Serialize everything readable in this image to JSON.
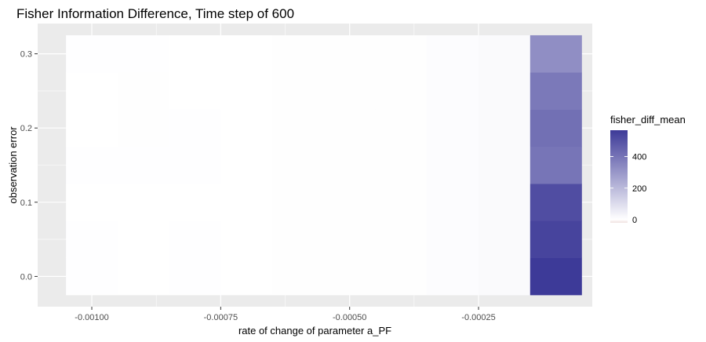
{
  "chart_data": {
    "type": "heatmap",
    "title": "Fisher Information Difference, Time step of 600",
    "xlabel": "rate of change of parameter a_PF",
    "ylabel": "observation error",
    "x_ticks": [
      -0.001,
      -0.00075,
      -0.0005,
      -0.00025
    ],
    "x_tick_labels": [
      "-0.00100",
      "-0.00075",
      "-0.00050",
      "-0.00025"
    ],
    "y_ticks": [
      0.0,
      0.1,
      0.2,
      0.3
    ],
    "y_tick_labels": [
      "0.0",
      "0.1",
      "0.2",
      "0.3"
    ],
    "xlim": [
      -0.001105,
      -2.95e-05
    ],
    "ylim": [
      -0.0408,
      0.3408
    ],
    "x_centers": [
      -0.001,
      -0.0009,
      -0.0008,
      -0.0007,
      -0.0006,
      -0.0005,
      -0.0004,
      -0.0003,
      -0.0002,
      -0.0001
    ],
    "y_centers": [
      0.0,
      0.05,
      0.1,
      0.15,
      0.2,
      0.25,
      0.3
    ],
    "tile_width": 0.0001,
    "tile_height": 0.05,
    "z": [
      [
        2,
        1,
        2,
        1,
        3,
        3,
        4,
        8,
        14,
        567
      ],
      [
        2,
        1,
        2,
        1,
        3,
        3,
        4,
        8,
        14,
        538
      ],
      [
        1,
        1,
        1,
        1,
        3,
        3,
        4,
        8,
        14,
        511
      ],
      [
        2,
        2,
        2,
        1,
        3,
        3,
        4,
        8,
        14,
        398
      ],
      [
        1,
        4,
        2,
        1,
        3,
        3,
        4,
        8,
        14,
        413
      ],
      [
        0,
        4,
        1,
        1,
        3,
        3,
        4,
        8,
        14,
        385
      ],
      [
        2,
        2,
        1,
        1,
        3,
        3,
        4,
        8,
        14,
        325
      ]
    ],
    "legend": {
      "title": "fisher_diff_mean",
      "labels": [
        "0",
        "200",
        "400"
      ],
      "values": [
        0,
        200,
        400
      ],
      "min": -20,
      "max": 567,
      "low_color": "#efe0df",
      "mid_color": "#ffffff",
      "high_color": "#3d3a98"
    },
    "grid": true
  },
  "colors": {
    "panel_background": "#ebebeb",
    "grid_major": "#ffffff",
    "tick_color": "#333333"
  }
}
